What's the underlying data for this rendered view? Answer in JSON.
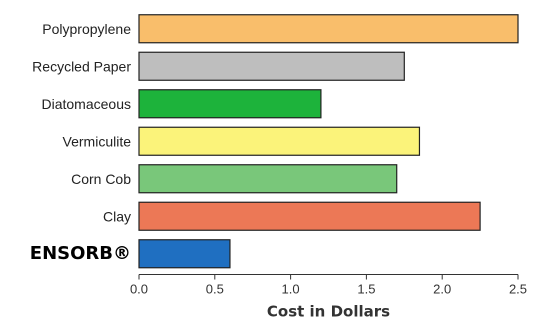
{
  "chart_data": {
    "type": "bar",
    "orientation": "horizontal",
    "categories": [
      "Polypropylene",
      "Recycled Paper",
      "Diatomaceous",
      "Vermiculite",
      "Corn Cob",
      "Clay",
      "ENSORB®"
    ],
    "values": [
      2.5,
      1.75,
      1.2,
      1.85,
      1.7,
      2.25,
      0.6
    ],
    "colors": [
      "#F9BE6B",
      "#BEBEBE",
      "#1DB33B",
      "#FBF37A",
      "#79C77A",
      "#EC7856",
      "#1F6FC1"
    ],
    "highlight_category": "ENSORB®",
    "xlabel": "Cost in Dollars",
    "xlim": [
      0,
      2.5
    ],
    "xticks": [
      0.0,
      0.5,
      1.0,
      1.5,
      2.0,
      2.5
    ],
    "xtick_labels": [
      "0.0",
      "0.5",
      "1.0",
      "1.5",
      "2.0",
      "2.5"
    ],
    "grid": false,
    "legend": "none"
  }
}
